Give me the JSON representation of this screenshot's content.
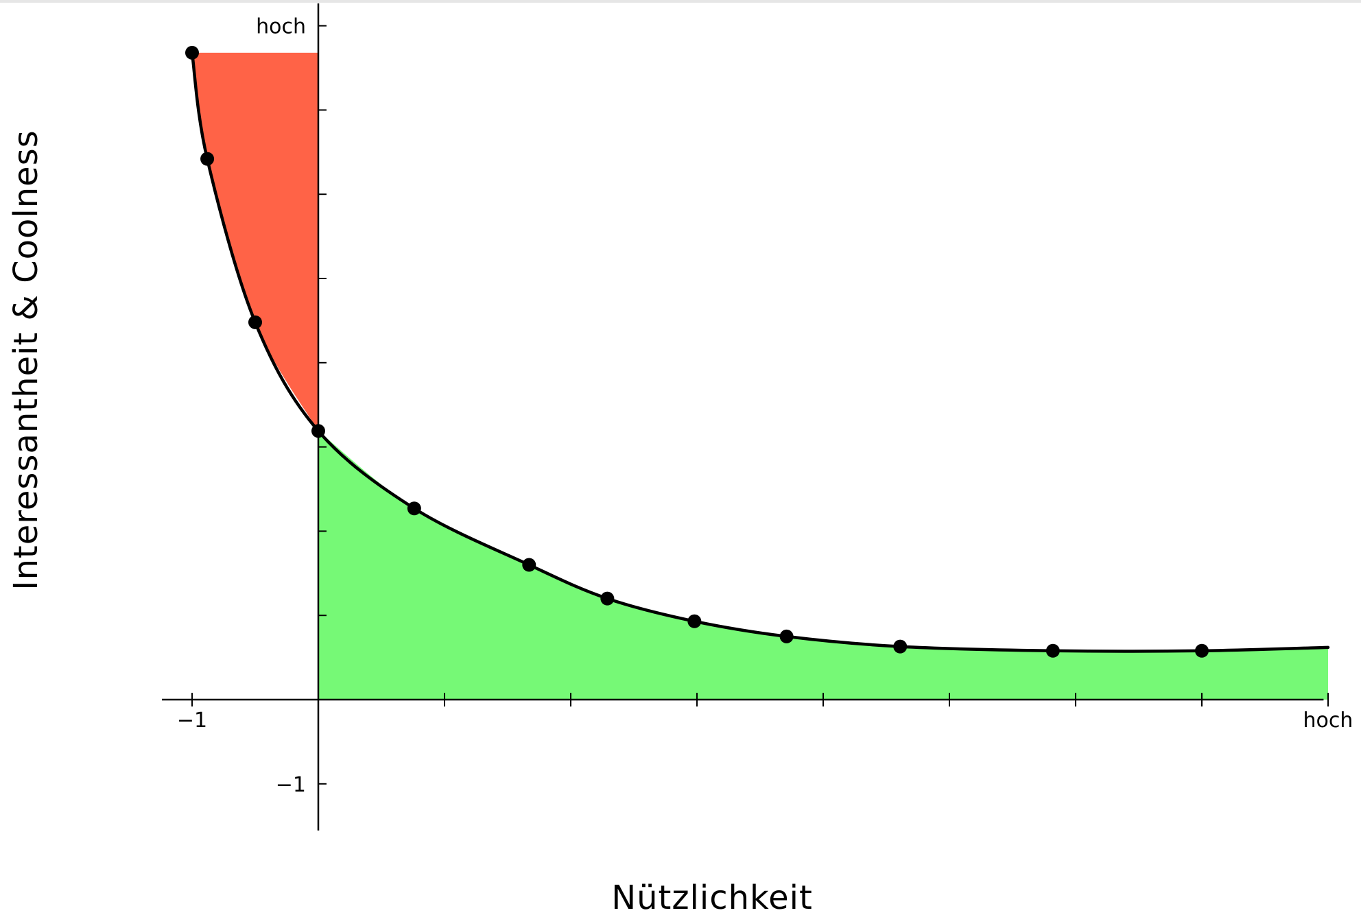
{
  "chart_data": {
    "type": "line",
    "title": "",
    "xlabel": "Nützlichkeit",
    "ylabel": "Interessantheit & Coolness",
    "xlim": [
      -1.5,
      8.1
    ],
    "ylim": [
      -1.7,
      8.0
    ],
    "x_tick_labels": [
      {
        "value": -1,
        "label": "−1"
      },
      {
        "value": 8,
        "label": "hoch"
      }
    ],
    "y_tick_labels": [
      {
        "value": -1,
        "label": "−1"
      },
      {
        "value": 8,
        "label": "hoch"
      }
    ],
    "x_minor_ticks": [
      -1,
      1,
      2,
      3,
      4,
      5,
      6,
      7,
      8
    ],
    "y_minor_ticks": [
      -1,
      1,
      2,
      3,
      4,
      5,
      6,
      7,
      8
    ],
    "series": [
      {
        "points": [
          {
            "x": -1.0,
            "y": 7.68
          },
          {
            "x": -0.88,
            "y": 6.42
          },
          {
            "x": -0.5,
            "y": 4.48
          },
          {
            "x": 0.0,
            "y": 3.19
          },
          {
            "x": 0.76,
            "y": 2.27
          },
          {
            "x": 1.67,
            "y": 1.6
          },
          {
            "x": 2.29,
            "y": 1.2
          },
          {
            "x": 2.98,
            "y": 0.93
          },
          {
            "x": 3.71,
            "y": 0.75
          },
          {
            "x": 4.61,
            "y": 0.63
          },
          {
            "x": 5.82,
            "y": 0.58
          },
          {
            "x": 7.0,
            "y": 0.58
          }
        ],
        "curve_end": {
          "x": 8.0,
          "y": 0.62
        }
      }
    ],
    "regions": [
      {
        "x_from": -1.0,
        "x_to": 0.0,
        "y_top": 7.68,
        "color": "#ff6347"
      },
      {
        "x_from": 0.0,
        "x_to": 8.0,
        "y_bottom": 0.0,
        "color": "#76f976"
      }
    ],
    "colors": {
      "curve": "#000000",
      "axis": "#000000",
      "negative_region": "#ff6347",
      "positive_region": "#76f976"
    },
    "grid": false,
    "legend": "none"
  }
}
